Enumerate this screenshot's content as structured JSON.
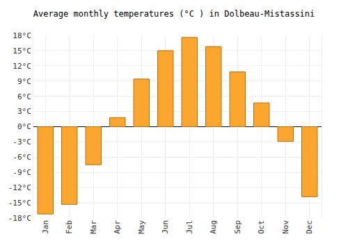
{
  "chart_data": {
    "type": "bar",
    "title": "Average monthly temperatures (°C ) in Dolbeau-Mistassini",
    "categories": [
      "Jan",
      "Feb",
      "Mar",
      "Apr",
      "May",
      "Jun",
      "Jul",
      "Aug",
      "Sep",
      "Oct",
      "Nov",
      "Dec"
    ],
    "values": [
      -17.2,
      -15.3,
      -7.5,
      1.8,
      9.4,
      15.0,
      17.6,
      15.8,
      10.8,
      4.7,
      -2.9,
      -13.8
    ],
    "color": "#fba72f",
    "ylim": [
      -18,
      18
    ],
    "yticks": [
      {
        "value": -18,
        "label": "-18°C"
      },
      {
        "value": -15,
        "label": "-15°C"
      },
      {
        "value": -12,
        "label": "-12°C"
      },
      {
        "value": -9,
        "label": "-9°C"
      },
      {
        "value": -6,
        "label": "-6°C"
      },
      {
        "value": -3,
        "label": "-3°C"
      },
      {
        "value": 0,
        "label": "0°C"
      },
      {
        "value": 3,
        "label": "3°C"
      },
      {
        "value": 6,
        "label": "6°C"
      },
      {
        "value": 9,
        "label": "9°C"
      },
      {
        "value": 12,
        "label": "12°C"
      },
      {
        "value": 15,
        "label": "15°C"
      },
      {
        "value": 18,
        "label": "18°C"
      }
    ],
    "grid": true
  }
}
